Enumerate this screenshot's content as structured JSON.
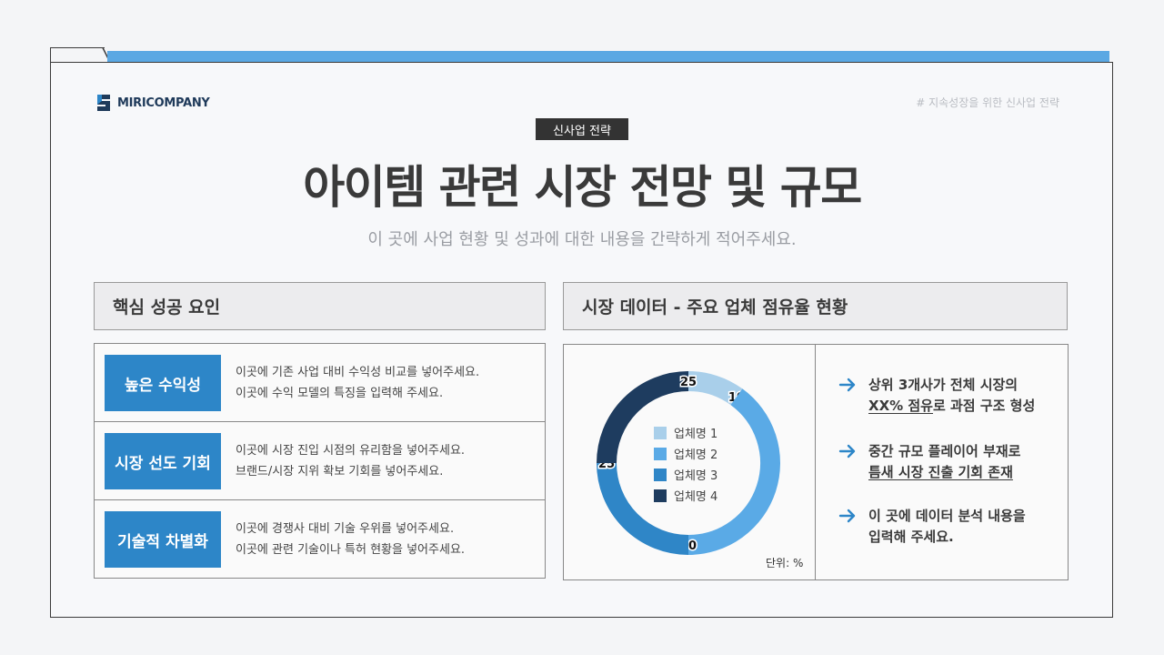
{
  "brand": {
    "name": "MIRICOMPANY"
  },
  "hashtag": "# 지속성장을 위한 신사업 전략",
  "badge": "신사업 전략",
  "title": "아이템 관련 시장 전망 및 규모",
  "subtitle": "이 곳에 사업 현황 및 성과에 대한 내용을 간략하게 적어주세요.",
  "left_section": {
    "heading": "핵심 성공 요인",
    "factors": [
      {
        "label": "높은 수익성",
        "line1": "이곳에 기존 사업 대비 수익성 비교를 넣어주세요.",
        "line2": "이곳에 수익 모델의 특징을 입력해 주세요."
      },
      {
        "label": "시장 선도 기회",
        "line1": "이곳에 시장 진입 시점의 유리함을 넣어주세요.",
        "line2": "브랜드/시장 지위 확보 기회를 넣어주세요."
      },
      {
        "label": "기술적 차별화",
        "line1": "이곳에 경쟁사 대비 기술 우위를 넣어주세요.",
        "line2": "이곳에 관련 기술이나 특허 현황을 넣어주세요."
      }
    ]
  },
  "right_section": {
    "heading": "시장 데이터 - 주요 업체 점유율 현황",
    "unit": "단위: %",
    "points": [
      {
        "line1": "상위 3개사가 전체 시장의",
        "line2_underlined": "XX% 점유",
        "line2_rest": "로 과점 구조 형성"
      },
      {
        "line1": "중간 규모 플레이어 부재로",
        "line2_underlined": "틈새 시장 진출 기회 존재",
        "line2_rest": ""
      },
      {
        "line1": "이 곳에 데이터 분석 내용을",
        "line2_underlined": "",
        "line2_rest": "입력해 주세요."
      }
    ]
  },
  "chart_data": {
    "type": "pie",
    "categories": [
      "업체명 1",
      "업체명 2",
      "업체명 3",
      "업체명 4"
    ],
    "values": [
      10,
      40,
      25,
      25
    ],
    "colors": [
      "#a9cfea",
      "#5aaae6",
      "#2f86c7",
      "#1e3c5f"
    ],
    "legend_position": "center"
  },
  "colors": {
    "accent": "#2d86c8",
    "strip": "#5ba8e3",
    "dark": "#333333"
  }
}
